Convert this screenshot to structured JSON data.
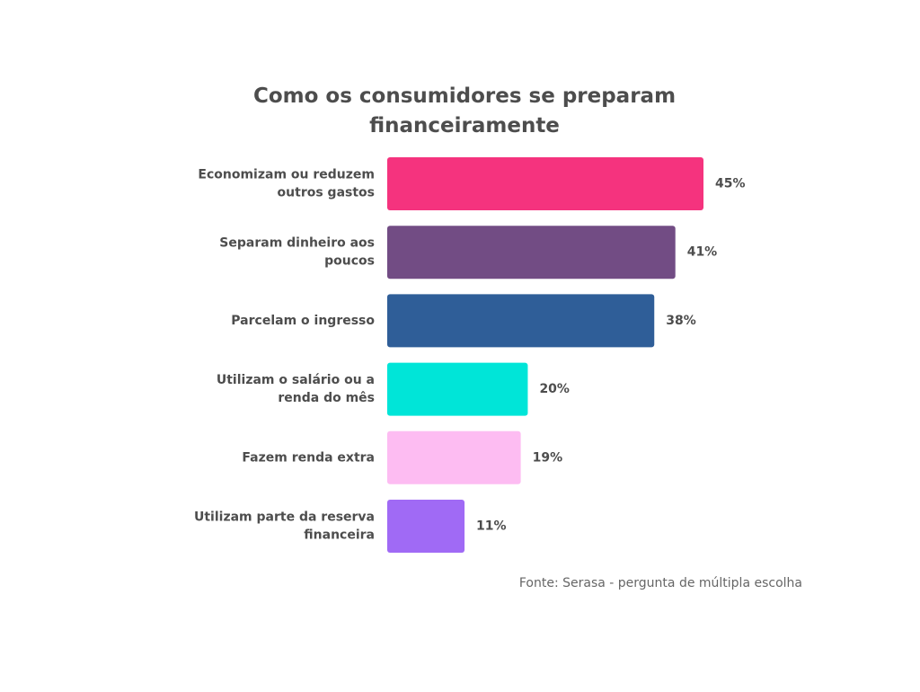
{
  "chart_data": {
    "type": "bar",
    "orientation": "horizontal",
    "title_lines": [
      "Como os consumidores se preparam",
      "financeiramente"
    ],
    "categories": [
      [
        "Economizam ou reduzem",
        "outros gastos"
      ],
      [
        "Separam dinheiro aos",
        "poucos"
      ],
      [
        "Parcelam o ingresso"
      ],
      [
        "Utilizam o salário ou a",
        "renda do mês"
      ],
      [
        "Fazem renda extra"
      ],
      [
        "Utilizam parte da reserva",
        "financeira"
      ]
    ],
    "values": [
      45,
      41,
      38,
      20,
      19,
      11
    ],
    "value_labels": [
      "45%",
      "41%",
      "38%",
      "20%",
      "19%",
      "11%"
    ],
    "colors": [
      "#f5337e",
      "#724c84",
      "#2f5e98",
      "#00e5d8",
      "#fdbcf2",
      "#a06af5"
    ],
    "xlim": [
      0,
      45
    ],
    "grid": false,
    "source": "Fonte: Serasa - pergunta de múltipla escolha"
  }
}
